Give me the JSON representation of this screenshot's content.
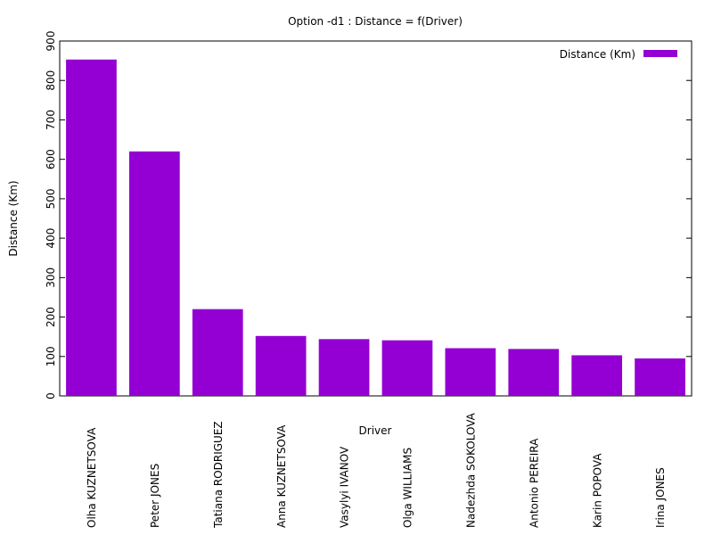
{
  "chart_data": {
    "type": "bar",
    "title": "Option -d1 : Distance = f(Driver)",
    "xlabel": "Driver",
    "ylabel": "Distance (Km)",
    "ylim": [
      0,
      900
    ],
    "yticks": [
      0,
      100,
      200,
      300,
      400,
      500,
      600,
      700,
      800,
      900
    ],
    "categories": [
      "Olha KUZNETSOVA",
      "Peter JONES",
      "Tatiana RODRIGUEZ",
      "Anna KUZNETSOVA",
      "Vasylyi IVANOV",
      "Olga WILLIAMS",
      "Nadezhda SOKOLOVA",
      "Antonio PEREIRA",
      "Karin POPOVA",
      "Irina JONES"
    ],
    "series": [
      {
        "name": "Distance (Km)",
        "color": "#9400d3",
        "values": [
          853,
          620,
          220,
          152,
          144,
          141,
          121,
          119,
          103,
          95
        ]
      }
    ],
    "legend_position": "top-right",
    "grid": false
  }
}
